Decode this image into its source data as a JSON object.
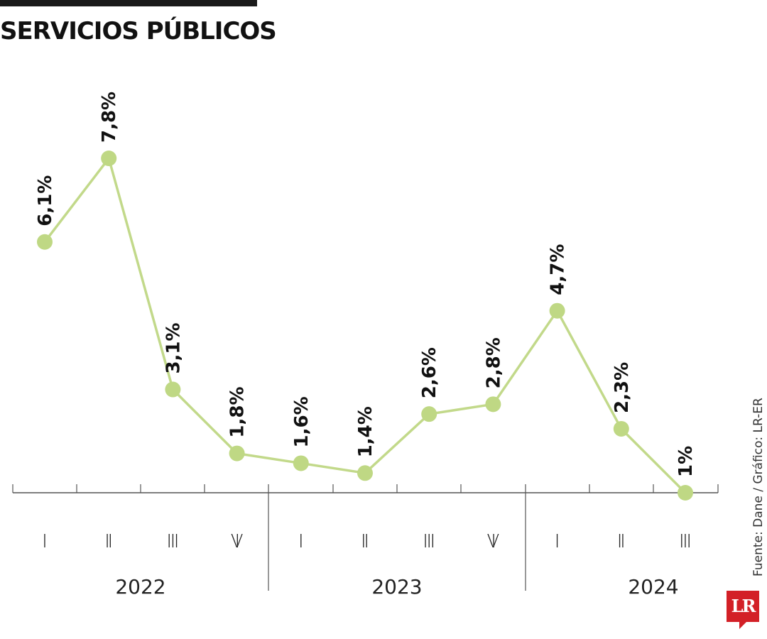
{
  "title": "SERVICIOS PÚBLICOS",
  "source": "Fuente: Dane / Gráfico: LR-ER",
  "logo": "LR",
  "colors": {
    "line": "#c2d98a",
    "point": "#bfd884",
    "axis": "#555555",
    "text": "#111111",
    "logo": "#d32027"
  },
  "chart_data": {
    "type": "line",
    "title": "SERVICIOS PÚBLICOS",
    "xlabel": "",
    "ylabel": "",
    "grid": false,
    "legend": "none",
    "categories": [
      "2022-I",
      "2022-II",
      "2022-III",
      "2022-IV",
      "2023-I",
      "2023-II",
      "2023-III",
      "2023-IV",
      "2024-I",
      "2024-II",
      "2024-III"
    ],
    "quarters": [
      "I",
      "II",
      "III",
      "IV",
      "I",
      "II",
      "III",
      "IV",
      "I",
      "II",
      "III"
    ],
    "years": [
      "2022",
      "2023",
      "2024"
    ],
    "values": [
      6.1,
      7.8,
      3.1,
      1.8,
      1.6,
      1.4,
      2.6,
      2.8,
      4.7,
      2.3,
      1.0
    ],
    "labels": [
      "6,1%",
      "7,8%",
      "3,1%",
      "1,8%",
      "1,6%",
      "1,4%",
      "2,6%",
      "2,8%",
      "4,7%",
      "2,3%",
      "1%"
    ],
    "ylim": [
      1.0,
      7.8
    ]
  }
}
